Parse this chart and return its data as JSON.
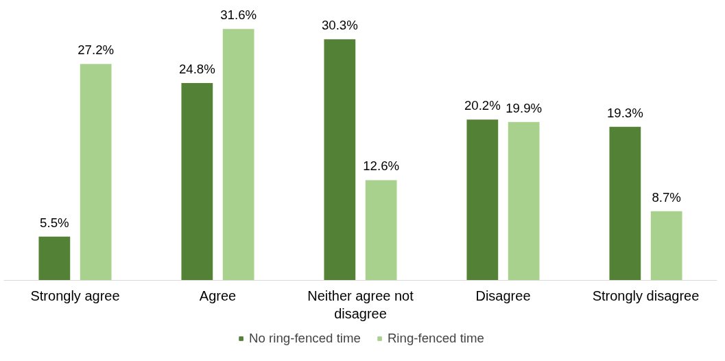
{
  "chart_data": {
    "type": "bar",
    "categories": [
      "Strongly agree",
      "Agree",
      "Neither agree not disagree",
      "Disagree",
      "Strongly disagree"
    ],
    "series": [
      {
        "name": "No ring-fenced time",
        "color": "#538135",
        "values": [
          5.5,
          24.8,
          30.3,
          20.2,
          19.3
        ],
        "value_labels": [
          "5.5%",
          "24.8%",
          "30.3%",
          "20.2%",
          "19.3%"
        ]
      },
      {
        "name": "Ring-fenced time",
        "color": "#a9d18e",
        "values": [
          27.2,
          31.6,
          12.6,
          19.9,
          8.7
        ],
        "value_labels": [
          "27.2%",
          "31.6%",
          "12.6%",
          "19.9%",
          "8.7%"
        ]
      }
    ],
    "legend": "bottom"
  }
}
